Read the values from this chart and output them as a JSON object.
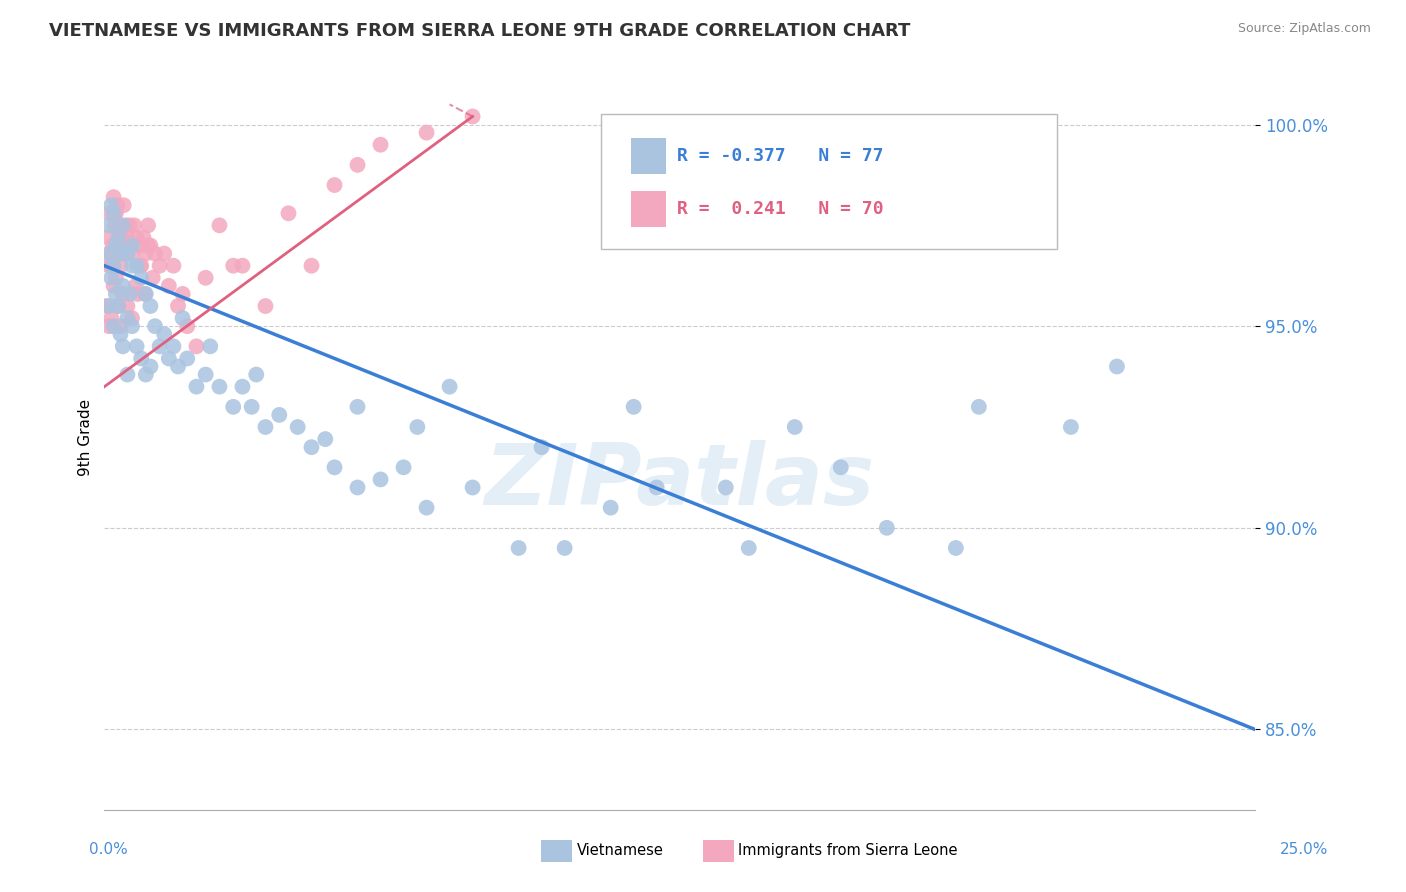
{
  "title": "VIETNAMESE VS IMMIGRANTS FROM SIERRA LEONE 9TH GRADE CORRELATION CHART",
  "source": "Source: ZipAtlas.com",
  "ylabel": "9th Grade",
  "xlim": [
    0.0,
    25.0
  ],
  "ylim": [
    83.0,
    101.5
  ],
  "yticks": [
    85.0,
    90.0,
    95.0,
    100.0
  ],
  "ytick_labels": [
    "85.0%",
    "90.0%",
    "95.0%",
    "100.0%"
  ],
  "legend_blue_label": "Vietnamese",
  "legend_pink_label": "Immigrants from Sierra Leone",
  "R_blue": -0.377,
  "N_blue": 77,
  "R_pink": 0.241,
  "N_pink": 70,
  "blue_color": "#aac4e0",
  "pink_color": "#f4a8bf",
  "blue_line_color": "#3a7fd5",
  "pink_line_color": "#e06080",
  "watermark": "ZIPatlas",
  "blue_trend_x0": 0.0,
  "blue_trend_y0": 96.5,
  "blue_trend_x1": 25.0,
  "blue_trend_y1": 85.0,
  "pink_trend_x0": 0.0,
  "pink_trend_y0": 93.5,
  "pink_trend_x1": 8.0,
  "pink_trend_y1": 100.2,
  "blue_scatter_x": [
    0.1,
    0.1,
    0.1,
    0.15,
    0.15,
    0.2,
    0.2,
    0.2,
    0.25,
    0.25,
    0.3,
    0.3,
    0.35,
    0.35,
    0.4,
    0.4,
    0.4,
    0.5,
    0.5,
    0.5,
    0.6,
    0.6,
    0.7,
    0.7,
    0.8,
    0.8,
    0.9,
    0.9,
    1.0,
    1.0,
    1.1,
    1.2,
    1.3,
    1.4,
    1.5,
    1.6,
    1.8,
    2.0,
    2.2,
    2.5,
    2.8,
    3.0,
    3.2,
    3.5,
    3.8,
    4.2,
    4.5,
    5.0,
    5.5,
    6.0,
    6.5,
    7.0,
    8.0,
    9.0,
    10.0,
    11.0,
    12.0,
    14.0,
    17.0,
    18.5,
    5.5,
    6.8,
    7.5,
    9.5,
    11.5,
    13.5,
    15.0,
    16.0,
    19.0,
    21.0,
    22.0,
    3.3,
    4.8,
    2.3,
    1.7,
    0.6,
    0.55
  ],
  "blue_scatter_y": [
    97.5,
    96.8,
    95.5,
    98.0,
    96.2,
    97.8,
    96.5,
    95.0,
    97.0,
    95.8,
    97.2,
    95.5,
    96.8,
    94.8,
    97.5,
    96.0,
    94.5,
    96.8,
    95.2,
    93.8,
    97.0,
    95.0,
    96.5,
    94.5,
    96.2,
    94.2,
    95.8,
    93.8,
    95.5,
    94.0,
    95.0,
    94.5,
    94.8,
    94.2,
    94.5,
    94.0,
    94.2,
    93.5,
    93.8,
    93.5,
    93.0,
    93.5,
    93.0,
    92.5,
    92.8,
    92.5,
    92.0,
    91.5,
    91.0,
    91.2,
    91.5,
    90.5,
    91.0,
    89.5,
    89.5,
    90.5,
    91.0,
    89.5,
    90.0,
    89.5,
    93.0,
    92.5,
    93.5,
    92.0,
    93.0,
    91.0,
    92.5,
    91.5,
    93.0,
    92.5,
    94.0,
    93.8,
    92.2,
    94.5,
    95.2,
    96.5,
    95.8
  ],
  "pink_scatter_x": [
    0.05,
    0.08,
    0.1,
    0.1,
    0.12,
    0.15,
    0.15,
    0.18,
    0.2,
    0.2,
    0.22,
    0.25,
    0.25,
    0.28,
    0.3,
    0.3,
    0.32,
    0.35,
    0.35,
    0.38,
    0.4,
    0.4,
    0.42,
    0.45,
    0.48,
    0.5,
    0.5,
    0.55,
    0.6,
    0.6,
    0.65,
    0.7,
    0.72,
    0.75,
    0.8,
    0.85,
    0.9,
    0.95,
    1.0,
    1.1,
    1.2,
    1.4,
    1.6,
    1.8,
    2.0,
    2.5,
    3.0,
    3.5,
    4.0,
    5.0,
    5.5,
    6.0,
    7.0,
    8.0,
    0.15,
    0.22,
    0.32,
    0.45,
    0.55,
    0.68,
    0.78,
    0.88,
    0.95,
    1.05,
    1.3,
    1.5,
    1.7,
    2.2,
    2.8,
    4.5
  ],
  "pink_scatter_y": [
    95.5,
    97.2,
    96.5,
    95.0,
    97.8,
    96.8,
    95.2,
    97.0,
    98.2,
    96.0,
    97.5,
    97.8,
    96.2,
    98.0,
    96.8,
    95.5,
    97.5,
    96.5,
    95.0,
    97.2,
    97.0,
    95.8,
    98.0,
    96.8,
    97.5,
    97.2,
    95.5,
    97.0,
    96.8,
    95.2,
    97.5,
    97.2,
    95.8,
    97.0,
    96.5,
    97.2,
    96.8,
    97.5,
    97.0,
    96.8,
    96.5,
    96.0,
    95.5,
    95.0,
    94.5,
    97.5,
    96.5,
    95.5,
    97.8,
    98.5,
    99.0,
    99.5,
    99.8,
    100.2,
    96.5,
    97.8,
    97.2,
    96.8,
    97.5,
    96.0,
    96.5,
    95.8,
    97.0,
    96.2,
    96.8,
    96.5,
    95.8,
    96.2,
    96.5,
    96.5
  ]
}
